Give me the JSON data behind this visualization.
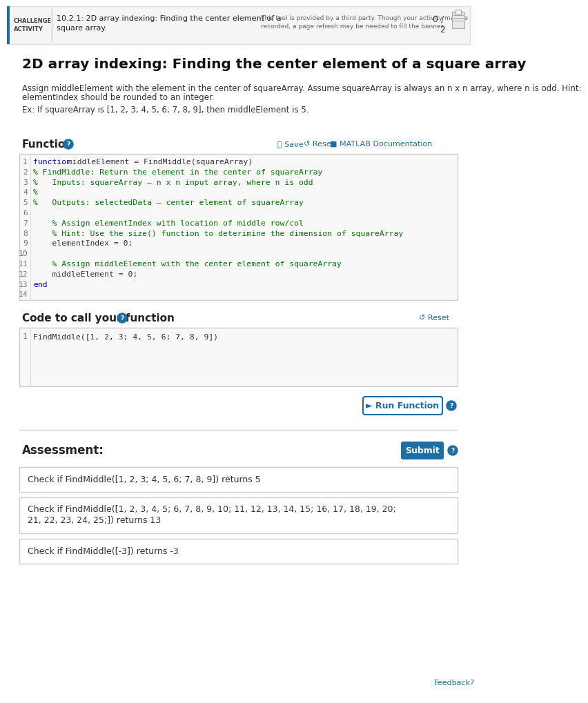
{
  "bg_color": "#ffffff",
  "header_bg": "#f5f5f5",
  "header_border_color": "#dddddd",
  "header_blue_bar": "#1c6ea4",
  "main_title": "2D array indexing: Finding the center element of a square array",
  "desc1": "Assign middleElement with the element in the center of squareArray. Assume squareArray is always an n x n array, where n is odd. Hint:",
  "desc1b": "elementIndex should be rounded to an integer.",
  "desc2": "Ex: If squareArray is [1, 2, 3; 4, 5, 6; 7, 8, 9], then middleElement is 5.",
  "function_label": "Function",
  "save_label": "💾 Save",
  "reset_label": "↺ Reset",
  "matlab_label": "■ MATLAB Documentation",
  "call_label": "Code to call your function",
  "call_reset_label": "↺ Reset",
  "call_code": "FindMiddle([1, 2, 3; 4, 5, 6; 7, 8, 9])",
  "run_btn_label": "► Run Function",
  "assessment_label": "Assessment:",
  "submit_label": "Submit",
  "check1": "Check if FindMiddle([1, 2, 3; 4, 5, 6; 7, 8, 9]) returns 5",
  "check2a": "Check if FindMiddle([1, 2, 3, 4, 5; 6, 7, 8, 9, 10; 11, 12, 13, 14, 15; 16, 17, 18, 19, 20;",
  "check2b": "21, 22, 23, 24, 25;]) returns 13",
  "check3": "Check if FindMiddle([-3]) returns -3",
  "feedback_label": "Feedback?",
  "code_bg": "#f8f8f8",
  "code_border": "#cccccc",
  "line_num_color": "#777777",
  "btn_blue_bg": "#1c6ea4",
  "blue_text": "#1c6ea4",
  "gray_text": "#555555",
  "dark_text": "#222222",
  "code_lines": [
    {
      "num": "1",
      "parts": [
        [
          "function ",
          "#0000bb"
        ],
        [
          "middleElement = FindMiddle(squareArray)",
          "#333333"
        ]
      ]
    },
    {
      "num": "2",
      "parts": [
        [
          "% FindMiddle: Return the element in the center of squareArray",
          "#007700"
        ]
      ]
    },
    {
      "num": "3",
      "parts": [
        [
          "%   Inputs: squareArray – n x n input array, where n is odd",
          "#007700"
        ]
      ]
    },
    {
      "num": "4",
      "parts": [
        [
          "%",
          "#007700"
        ]
      ]
    },
    {
      "num": "5",
      "parts": [
        [
          "%   Outputs: selectedData – center element of squareArray",
          "#007700"
        ]
      ]
    },
    {
      "num": "6",
      "parts": [
        [
          "",
          "#333333"
        ]
      ]
    },
    {
      "num": "7",
      "parts": [
        [
          "    % Assign elementIndex with location of middle row/col",
          "#007700"
        ]
      ]
    },
    {
      "num": "8",
      "parts": [
        [
          "    % Hint: Use the size() function to deterimine the dimension of squareArray",
          "#007700"
        ]
      ]
    },
    {
      "num": "9",
      "parts": [
        [
          "    elementIndex = 0;",
          "#333333"
        ]
      ]
    },
    {
      "num": "10",
      "parts": [
        [
          "",
          "#333333"
        ]
      ]
    },
    {
      "num": "11",
      "parts": [
        [
          "    % Assign middleElement with the center element of squareArray",
          "#007700"
        ]
      ]
    },
    {
      "num": "12",
      "parts": [
        [
          "    middleElement = 0;",
          "#333333"
        ]
      ]
    },
    {
      "num": "13",
      "parts": [
        [
          "end",
          "#0000bb"
        ]
      ]
    },
    {
      "num": "14",
      "parts": [
        [
          "",
          "#333333"
        ]
      ]
    }
  ],
  "header_challenge": "CHALLENGE",
  "header_activity": "ACTIVITY",
  "header_title1": "10.2.1: 2D array indexing: Finding the center element of a",
  "header_title2": "square array.",
  "header_note1": "This tool is provided by a third party. Though your activity may be",
  "header_note2": "recorded, a page refresh may be needed to fill the banner.",
  "header_score": "0 /",
  "header_score2": "2"
}
